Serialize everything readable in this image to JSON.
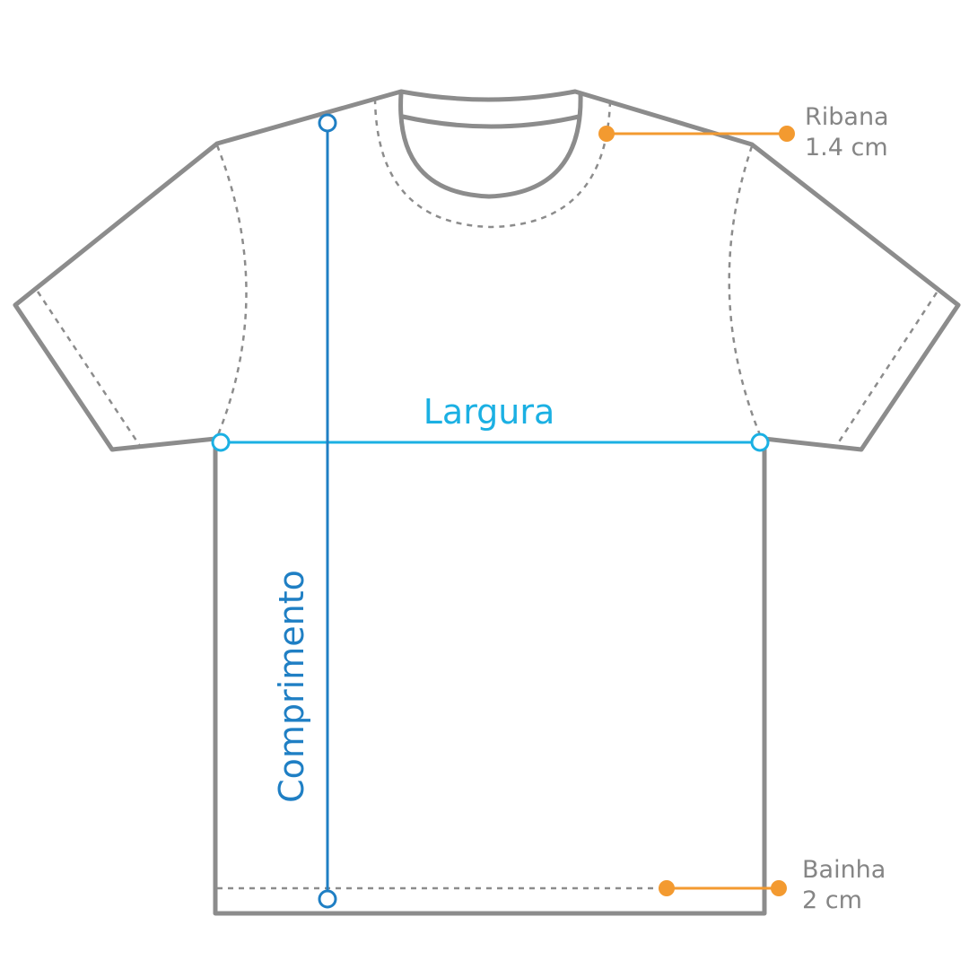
{
  "colors": {
    "outline": "#8c8c8c",
    "stitching": "#8c8c8c",
    "length_line": "#1f7fc4",
    "width_line": "#1bb0e3",
    "callout": "#f39a30",
    "callout_text": "#858585"
  },
  "dimensions": {
    "width": {
      "label": "Largura"
    },
    "length": {
      "label": "Comprimento"
    }
  },
  "callouts": {
    "rib": {
      "name": "Ribana",
      "value": "1.4 cm"
    },
    "hem": {
      "name": "Bainha",
      "value": "2 cm"
    }
  }
}
